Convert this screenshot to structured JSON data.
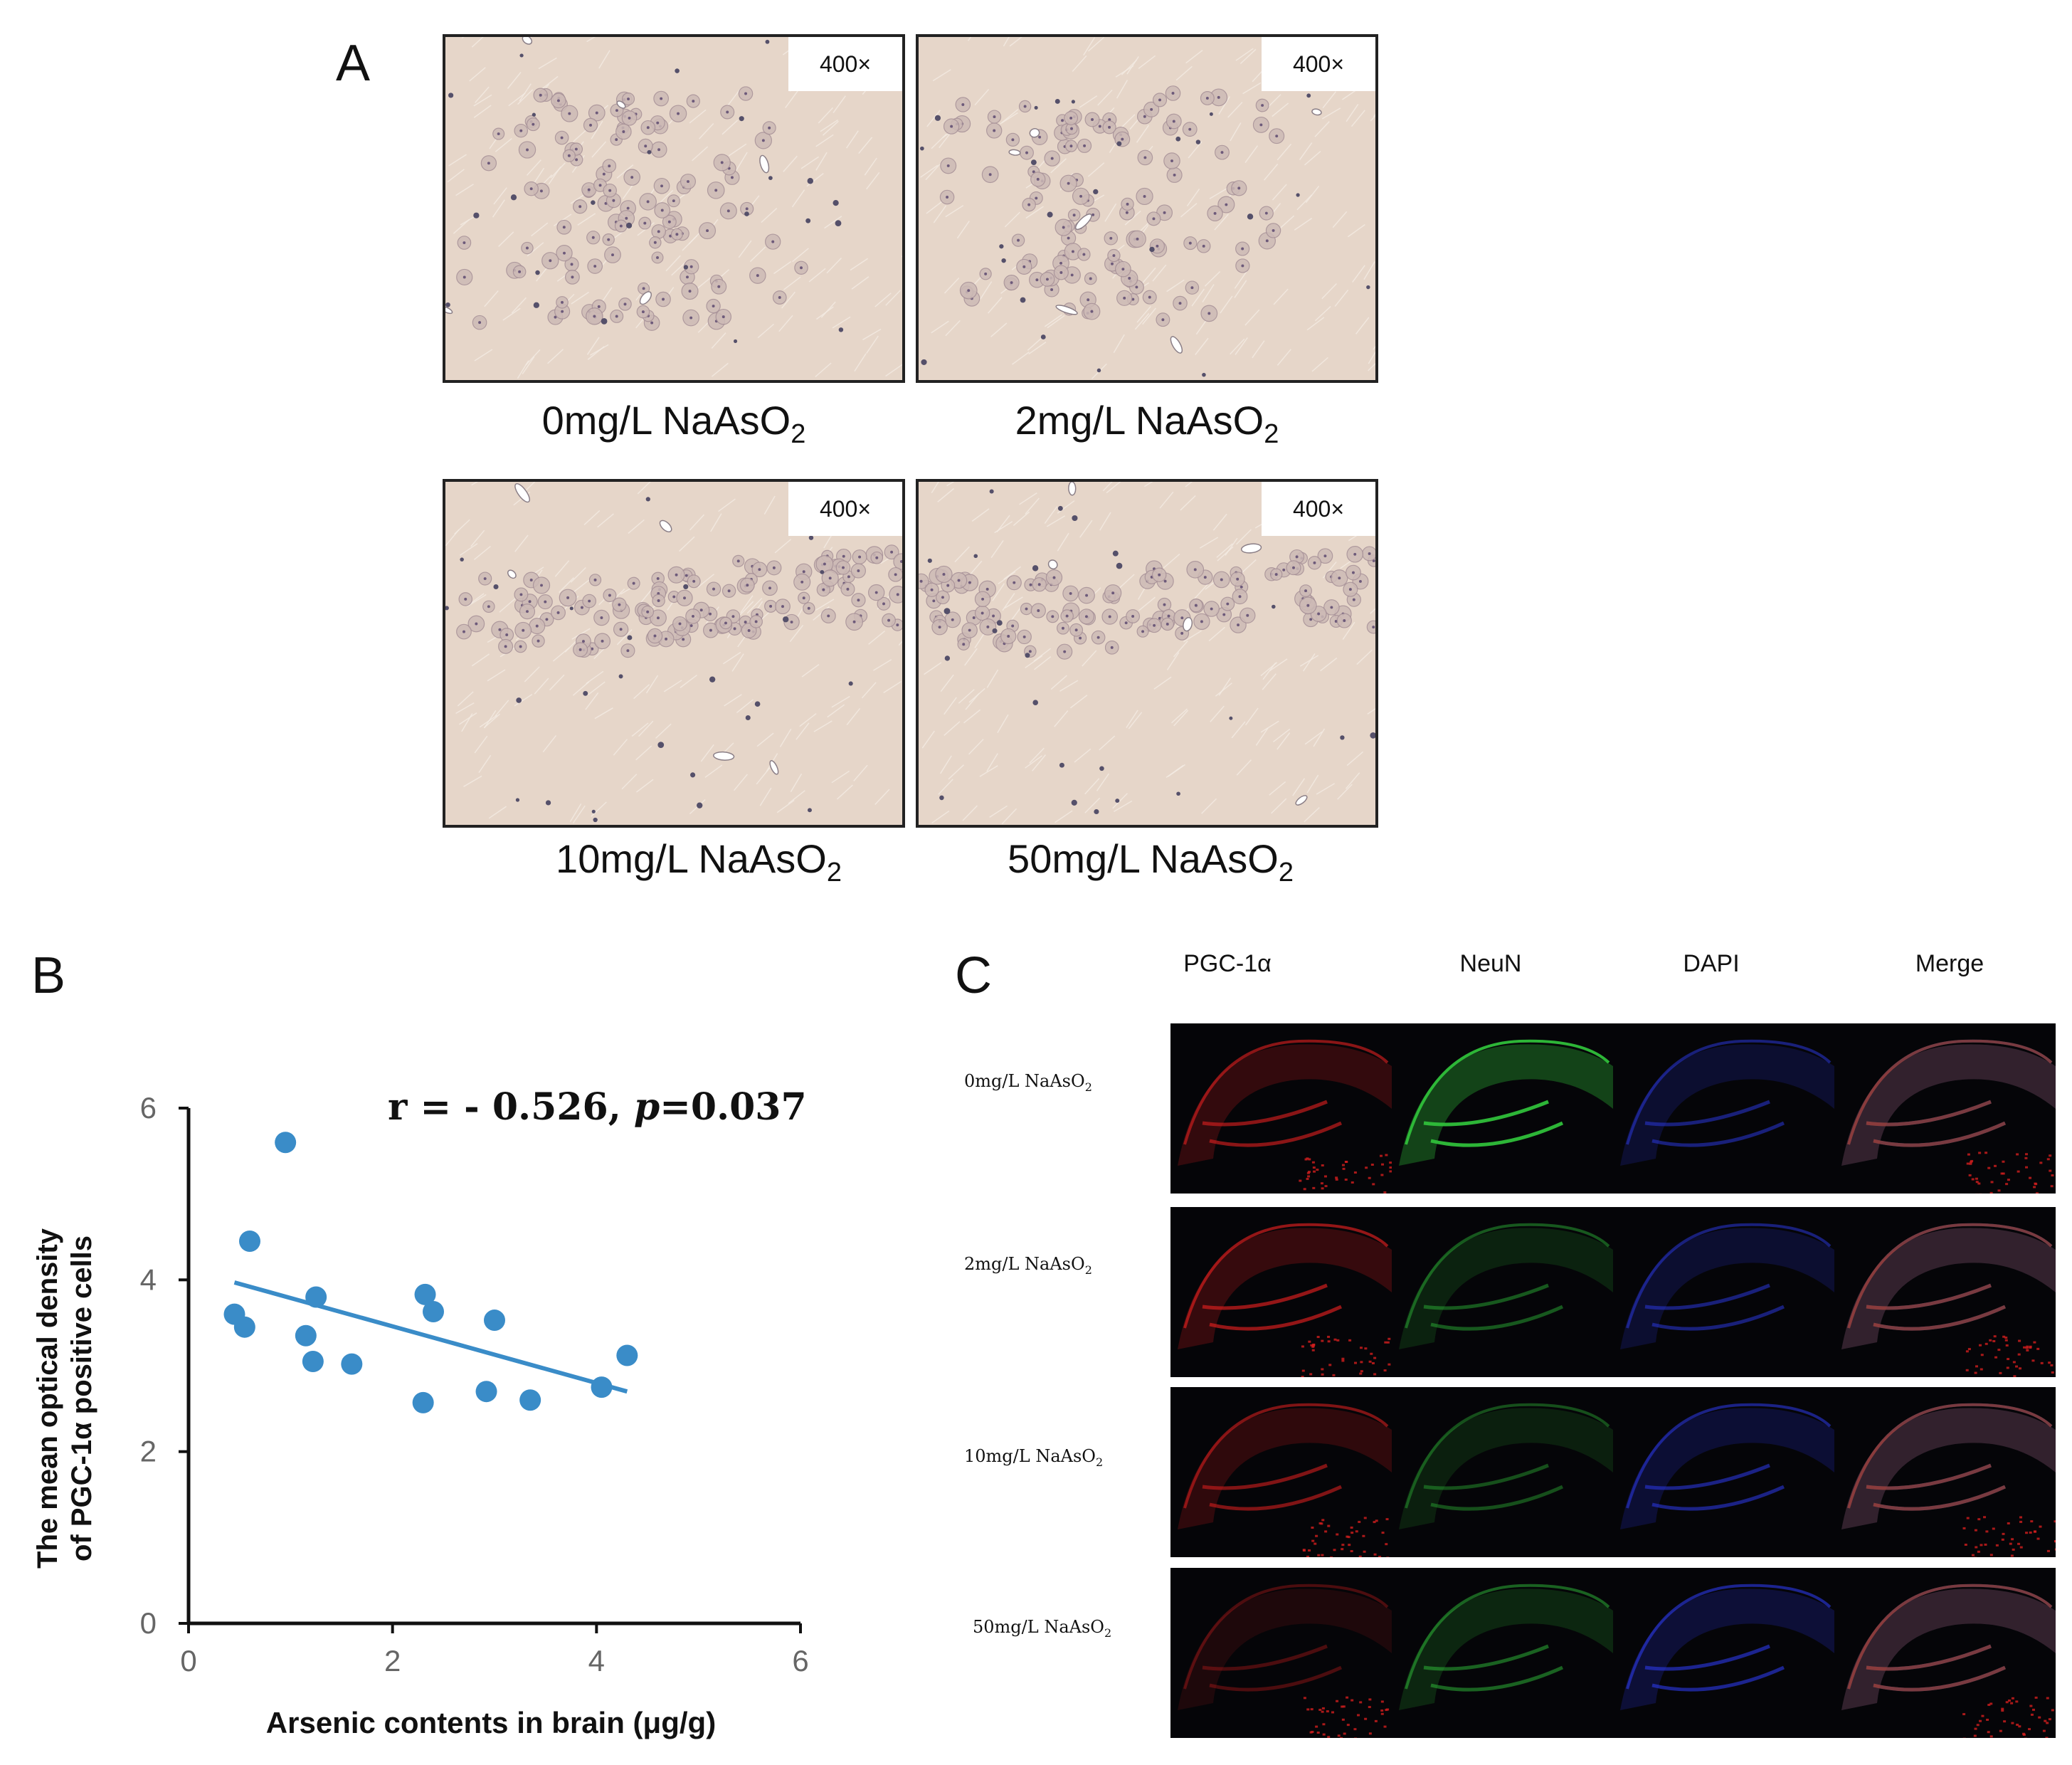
{
  "panel_a": {
    "letter": "A",
    "magnification": "400×",
    "captions": [
      {
        "dose": "0mg/L NaAsO",
        "sub": "2"
      },
      {
        "dose": "2mg/L NaAsO",
        "sub": "2"
      },
      {
        "dose": "10mg/L NaAsO",
        "sub": "2"
      },
      {
        "dose": "50mg/L NaAsO",
        "sub": "2"
      }
    ]
  },
  "panel_b": {
    "letter": "B",
    "annotation": {
      "r_text": "r = - 0.526, ",
      "p_symbol": "p",
      "p_value": "=0.037"
    }
  },
  "panel_c": {
    "letter": "C",
    "columns": [
      "PGC-1α",
      "NeuN",
      "DAPI",
      "Merge"
    ],
    "rows": [
      {
        "dose": "0mg/L NaAsO",
        "sub": "2"
      },
      {
        "dose": "2mg/L NaAsO",
        "sub": "2"
      },
      {
        "dose": "10mg/L NaAsO",
        "sub": "2"
      },
      {
        "dose": "50mg/L NaAsO",
        "sub": "2"
      }
    ]
  },
  "colors": {
    "scatter": "#3a8cc8",
    "ihc_tissue": "#e6d6c9",
    "pgc_red": "#d21e1e",
    "neun_green": "#2fbf3a",
    "dapi_blue": "#2a36d8"
  },
  "chart_data": {
    "type": "scatter",
    "xlabel": "Arsenic contents in brain (μg/g)",
    "ylabel_line1": "The mean optical density",
    "ylabel_line2": "of PGC-1α positive cells",
    "xlim": [
      0,
      6
    ],
    "ylim": [
      0,
      6
    ],
    "xticks": [
      "0",
      "2",
      "4",
      "6"
    ],
    "yticks": [
      "0",
      "2",
      "4",
      "6"
    ],
    "points": [
      {
        "x": 0.45,
        "y": 3.6
      },
      {
        "x": 0.55,
        "y": 3.45
      },
      {
        "x": 0.6,
        "y": 4.45
      },
      {
        "x": 0.95,
        "y": 5.6
      },
      {
        "x": 1.15,
        "y": 3.35
      },
      {
        "x": 1.22,
        "y": 3.05
      },
      {
        "x": 1.25,
        "y": 3.8
      },
      {
        "x": 1.6,
        "y": 3.02
      },
      {
        "x": 2.3,
        "y": 2.57
      },
      {
        "x": 2.32,
        "y": 3.83
      },
      {
        "x": 2.4,
        "y": 3.63
      },
      {
        "x": 2.92,
        "y": 2.7
      },
      {
        "x": 3.0,
        "y": 3.53
      },
      {
        "x": 3.35,
        "y": 2.6
      },
      {
        "x": 4.05,
        "y": 2.75
      },
      {
        "x": 4.3,
        "y": 3.12
      }
    ],
    "trendline": {
      "x": [
        0.45,
        4.3
      ],
      "y": [
        3.97,
        2.7
      ]
    },
    "grid": false
  }
}
